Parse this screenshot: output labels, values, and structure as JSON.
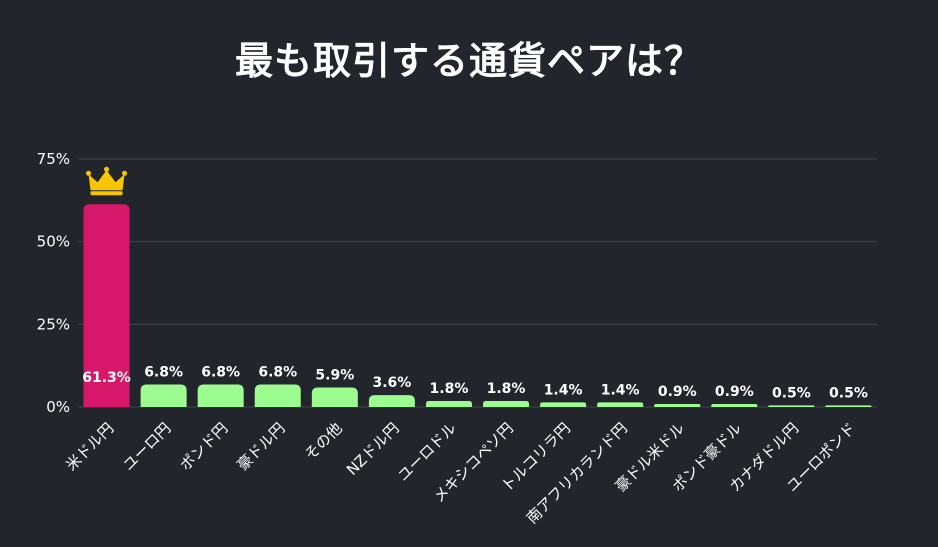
{
  "chart_data": {
    "type": "bar",
    "title": "最も取引する通貨ペアは？",
    "categories": [
      "米ドル円",
      "ユーロ円",
      "ポンド円",
      "豪ドル円",
      "その他",
      "NZドル円",
      "ユーロドル",
      "メキシコペソ円",
      "トルコリラ円",
      "南アフリカランド円",
      "豪ドル米ドル",
      "ポンド豪ドル",
      "カナダドル円",
      "ユーロポンド"
    ],
    "values": [
      61.3,
      6.8,
      6.8,
      6.8,
      5.9,
      3.6,
      1.8,
      1.8,
      1.4,
      1.4,
      0.9,
      0.9,
      0.5,
      0.5
    ],
    "data_labels": [
      "61.3%",
      "6.8%",
      "6.8%",
      "6.8%",
      "5.9%",
      "3.6%",
      "1.8%",
      "1.8%",
      "1.4%",
      "1.4%",
      "0.9%",
      "0.9%",
      "0.5%",
      "0.5%"
    ],
    "ylim": [
      0,
      75
    ],
    "yticks": [
      0,
      25,
      50,
      75
    ],
    "ytick_labels": [
      "0%",
      "25%",
      "50%",
      "75%"
    ],
    "xlabel": "",
    "ylabel": "",
    "grid": true,
    "highlight_index": 0,
    "highlight_icon": "crown-icon",
    "colors": {
      "highlight": "#d7186a",
      "bar": "#9dfc8f",
      "grid": "#3f444b",
      "crown": "#f7c600"
    }
  }
}
